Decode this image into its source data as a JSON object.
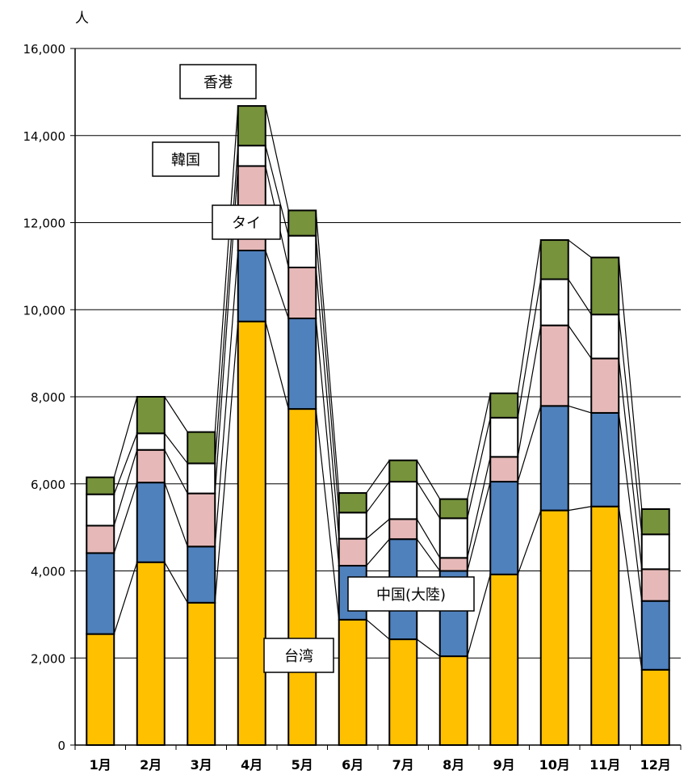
{
  "chart_data": {
    "type": "bar",
    "stacked": true,
    "unit_label": "人",
    "categories": [
      "1月",
      "2月",
      "3月",
      "4月",
      "5月",
      "6月",
      "7月",
      "8月",
      "9月",
      "10月",
      "11月",
      "12月"
    ],
    "ylim": [
      0,
      16000
    ],
    "yticks": [
      0,
      2000,
      4000,
      6000,
      8000,
      10000,
      12000,
      14000,
      16000
    ],
    "ytick_labels": [
      "0",
      "2,000",
      "4,000",
      "6,000",
      "8,000",
      "10,000",
      "12,000",
      "14,000",
      "16,000"
    ],
    "grid": true,
    "legend": "callout-labels",
    "series": [
      {
        "name": "台湾",
        "color": "#FFC000",
        "values": [
          2550,
          4200,
          3270,
          9730,
          7720,
          2880,
          2430,
          2040,
          3920,
          5390,
          5480,
          1730
        ]
      },
      {
        "name": "中国(大陸)",
        "color": "#4F81BD",
        "values": [
          1860,
          1830,
          1290,
          1630,
          2080,
          1240,
          2300,
          1960,
          2130,
          2400,
          2150,
          1580
        ]
      },
      {
        "name": "タイ",
        "color": "#E6B9B8",
        "values": [
          630,
          750,
          1220,
          1940,
          1170,
          620,
          460,
          300,
          570,
          1850,
          1250,
          730
        ]
      },
      {
        "name": "韓国",
        "color": "#FFFFFF",
        "values": [
          720,
          380,
          690,
          470,
          730,
          600,
          860,
          910,
          900,
          1060,
          1010,
          800
        ]
      },
      {
        "name": "香港",
        "color": "#77933C",
        "values": [
          390,
          840,
          720,
          910,
          580,
          450,
          490,
          440,
          560,
          900,
          1310,
          580
        ]
      }
    ]
  }
}
